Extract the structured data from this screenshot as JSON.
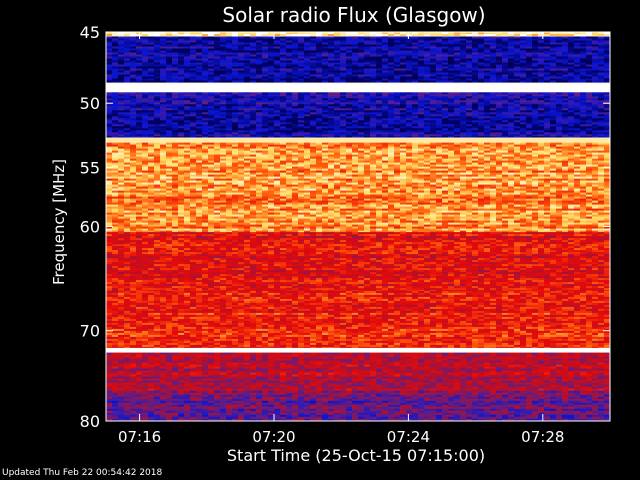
{
  "chart_data": {
    "type": "heatmap",
    "title": "Solar radio Flux (Glasgow)",
    "xlabel": "Start Time (25-Oct-15 07:15:00)",
    "ylabel": "Frequency [MHz]",
    "x_start": "07:15:00",
    "x_end": "07:30:00",
    "ylim": [
      45,
      80
    ],
    "x_ticks": [
      "07:16",
      "07:20",
      "07:24",
      "07:28"
    ],
    "y_ticks": [
      45,
      50,
      55,
      60,
      70,
      80
    ],
    "bands": [
      {
        "from": 45.0,
        "to": 45.3,
        "level": 0.9
      },
      {
        "from": 45.3,
        "to": 48.5,
        "level": 0.1
      },
      {
        "from": 48.5,
        "to": 49.2,
        "level": 1.0
      },
      {
        "from": 49.2,
        "to": 52.6,
        "level": 0.12
      },
      {
        "from": 52.6,
        "to": 53.0,
        "level": 0.95
      },
      {
        "from": 53.0,
        "to": 60.5,
        "level": 0.78
      },
      {
        "from": 60.5,
        "to": 66.0,
        "level": 0.55
      },
      {
        "from": 66.0,
        "to": 71.8,
        "level": 0.6
      },
      {
        "from": 71.8,
        "to": 72.3,
        "level": 1.0
      },
      {
        "from": 72.3,
        "to": 76.5,
        "level": 0.45
      },
      {
        "from": 76.5,
        "to": 80.0,
        "level": 0.3
      }
    ],
    "colormap": [
      "#00005a",
      "#0a14d2",
      "#5a1e8c",
      "#b4102a",
      "#e60a0a",
      "#ff5a0a",
      "#ffdc64",
      "#ffffff"
    ]
  },
  "footer": {
    "updated": "Updated Thu Feb 22 00:54:42 2018"
  }
}
